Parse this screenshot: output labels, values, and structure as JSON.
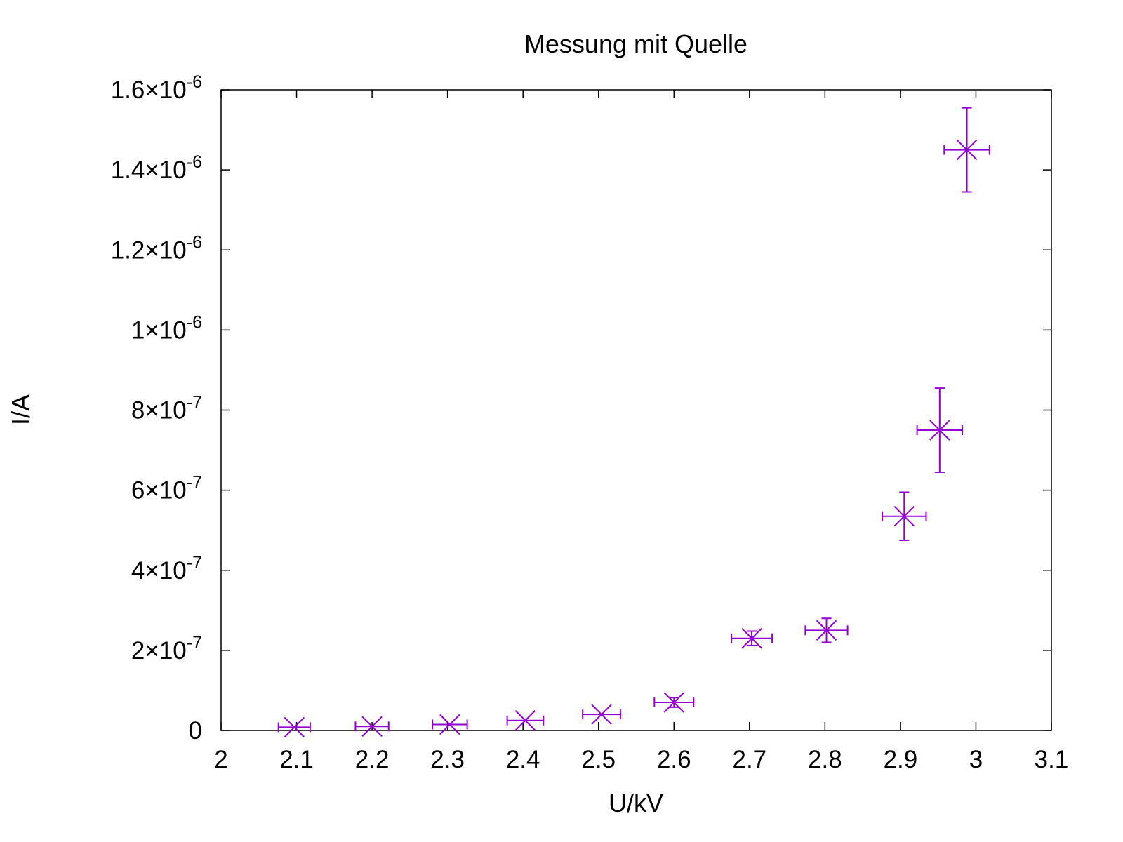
{
  "chart_data": {
    "type": "scatter",
    "title": "Messung mit Quelle",
    "xlabel": "U/kV",
    "ylabel": "I/A",
    "xlim": [
      2,
      3.1
    ],
    "ylim": [
      0,
      1.6e-06
    ],
    "grid": false,
    "legend": "none",
    "color": "#9400d3",
    "x_ticks": [
      {
        "value": 2,
        "label": "2"
      },
      {
        "value": 2.1,
        "label": "2.1"
      },
      {
        "value": 2.2,
        "label": "2.2"
      },
      {
        "value": 2.3,
        "label": "2.3"
      },
      {
        "value": 2.4,
        "label": "2.4"
      },
      {
        "value": 2.5,
        "label": "2.5"
      },
      {
        "value": 2.6,
        "label": "2.6"
      },
      {
        "value": 2.7,
        "label": "2.7"
      },
      {
        "value": 2.8,
        "label": "2.8"
      },
      {
        "value": 2.9,
        "label": "2.9"
      },
      {
        "value": 3,
        "label": "3"
      },
      {
        "value": 3.1,
        "label": "3.1"
      }
    ],
    "y_ticks": [
      {
        "value": 0,
        "mantissa": "0",
        "exp": ""
      },
      {
        "value": 2e-07,
        "mantissa": "2×10",
        "exp": "-7"
      },
      {
        "value": 4e-07,
        "mantissa": "4×10",
        "exp": "-7"
      },
      {
        "value": 6e-07,
        "mantissa": "6×10",
        "exp": "-7"
      },
      {
        "value": 8e-07,
        "mantissa": "8×10",
        "exp": "-7"
      },
      {
        "value": 1e-06,
        "mantissa": "1×10",
        "exp": "-6"
      },
      {
        "value": 1.2e-06,
        "mantissa": "1.2×10",
        "exp": "-6"
      },
      {
        "value": 1.4e-06,
        "mantissa": "1.4×10",
        "exp": "-6"
      },
      {
        "value": 1.6e-06,
        "mantissa": "1.6×10",
        "exp": "-6"
      }
    ],
    "points": [
      {
        "x": 2.097,
        "y": 8e-09,
        "xerr": 0.021,
        "yerr": 0
      },
      {
        "x": 2.2,
        "y": 1e-08,
        "xerr": 0.022,
        "yerr": 0
      },
      {
        "x": 2.303,
        "y": 1.5e-08,
        "xerr": 0.023,
        "yerr": 0
      },
      {
        "x": 2.403,
        "y": 2.5e-08,
        "xerr": 0.024,
        "yerr": 0
      },
      {
        "x": 2.504,
        "y": 4e-08,
        "xerr": 0.025,
        "yerr": 0
      },
      {
        "x": 2.6,
        "y": 7e-08,
        "xerr": 0.026,
        "yerr": 1.2e-08
      },
      {
        "x": 2.703,
        "y": 2.3e-07,
        "xerr": 0.027,
        "yerr": 1.8e-08
      },
      {
        "x": 2.802,
        "y": 2.5e-07,
        "xerr": 0.028,
        "yerr": 3e-08
      },
      {
        "x": 2.905,
        "y": 5.35e-07,
        "xerr": 0.029,
        "yerr": 6e-08
      },
      {
        "x": 2.952,
        "y": 7.5e-07,
        "xerr": 0.03,
        "yerr": 1.05e-07
      },
      {
        "x": 2.988,
        "y": 1.45e-06,
        "xerr": 0.03,
        "yerr": 1.05e-07
      }
    ]
  }
}
